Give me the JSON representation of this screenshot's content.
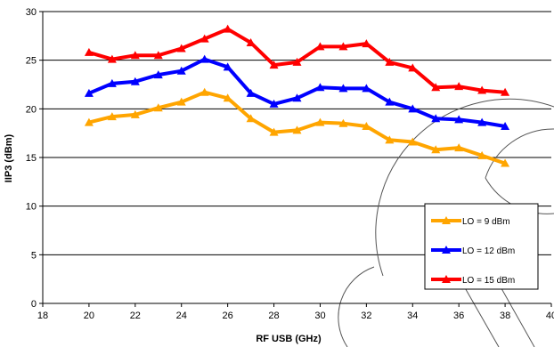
{
  "chart_data": {
    "type": "line",
    "title": "",
    "xlabel": "RF USB (GHz)",
    "ylabel": "IIP3 (dBm)",
    "xlim": [
      18,
      40
    ],
    "ylim": [
      0,
      30
    ],
    "x_ticks": [
      18,
      20,
      22,
      24,
      26,
      28,
      30,
      32,
      34,
      36,
      38,
      40
    ],
    "y_ticks": [
      0,
      5,
      10,
      15,
      20,
      25,
      30
    ],
    "grid": "horizontal",
    "legend_position": "bottom-right",
    "x": [
      20,
      21,
      22,
      23,
      24,
      25,
      26,
      27,
      28,
      29,
      30,
      31,
      32,
      33,
      34,
      35,
      36,
      37,
      38
    ],
    "series": [
      {
        "name": "LO = 9 dBm",
        "color": "#FFA500",
        "marker": "triangle",
        "values": [
          18.6,
          19.2,
          19.4,
          20.1,
          20.7,
          21.7,
          21.1,
          19.0,
          17.6,
          17.8,
          18.6,
          18.5,
          18.2,
          16.8,
          16.6,
          15.8,
          16.0,
          15.2,
          14.4
        ]
      },
      {
        "name": "LO = 12 dBm",
        "color": "#0000FF",
        "marker": "triangle",
        "values": [
          21.6,
          22.6,
          22.8,
          23.5,
          23.9,
          25.1,
          24.3,
          21.6,
          20.5,
          21.1,
          22.2,
          22.1,
          22.1,
          20.7,
          20.0,
          19.0,
          18.9,
          18.6,
          18.2
        ]
      },
      {
        "name": "LO = 15 dBm",
        "color": "#FF0000",
        "marker": "triangle",
        "values": [
          25.8,
          25.1,
          25.5,
          25.5,
          26.2,
          27.2,
          28.2,
          26.8,
          24.5,
          24.8,
          26.4,
          26.4,
          26.7,
          24.8,
          24.2,
          22.2,
          22.3,
          21.9,
          21.7
        ]
      }
    ]
  }
}
